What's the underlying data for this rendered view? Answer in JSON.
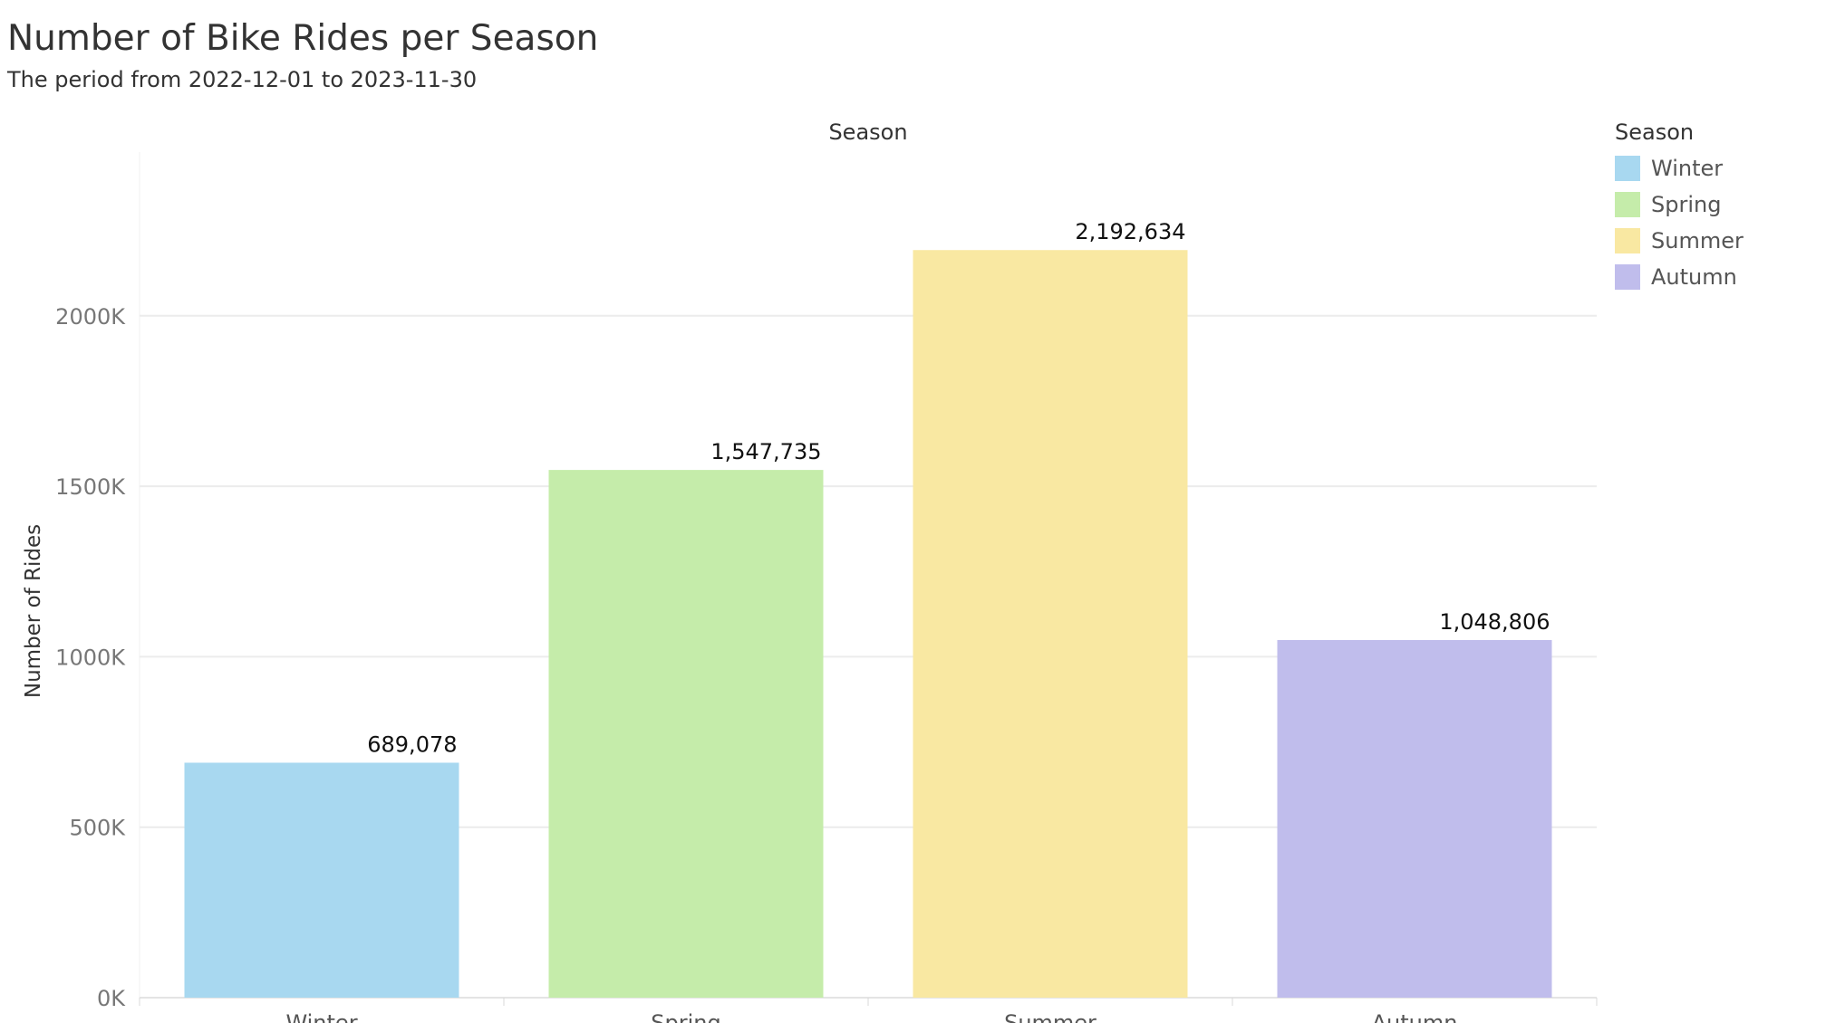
{
  "chart_data": {
    "type": "bar",
    "title": "Number of Bike Rides per Season",
    "subtitle": "The period from 2022-12-01 to 2023-11-30",
    "column_header": "Season",
    "ylabel": "Number of Rides",
    "categories": [
      "Winter",
      "Spring",
      "Summer",
      "Autumn"
    ],
    "values": [
      689078,
      1547735,
      2192634,
      1048806
    ],
    "value_labels": [
      "689,078",
      "1,547,735",
      "2,192,634",
      "1,048,806"
    ],
    "colors": [
      "#a8d8f0",
      "#c5ecaa",
      "#f9e8a2",
      "#c0bdec"
    ],
    "ylim": [
      0,
      2480000
    ],
    "yticks": [
      0,
      500000,
      1000000,
      1500000,
      2000000
    ],
    "ytick_labels": [
      "0K",
      "500K",
      "1000K",
      "1500K",
      "2000K"
    ],
    "grid": true,
    "legend": {
      "title": "Season",
      "position": "right",
      "items": [
        "Winter",
        "Spring",
        "Summer",
        "Autumn"
      ]
    }
  }
}
